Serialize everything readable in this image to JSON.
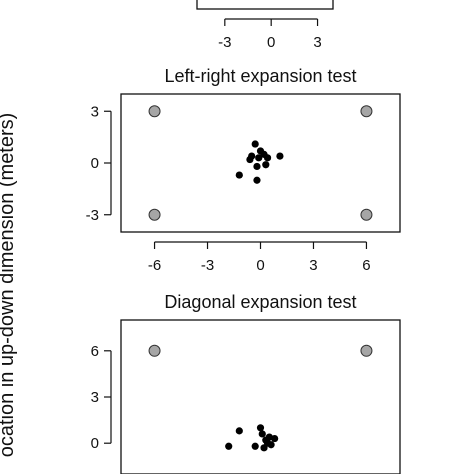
{
  "y_axis_label": "ocation in up-down dimension (meters)",
  "chart_data": [
    {
      "id": "top",
      "type": "scatter",
      "title": "",
      "x_ticks": [
        -3,
        0,
        3
      ],
      "xlim": [
        -4.8,
        4.0
      ],
      "series": []
    },
    {
      "id": "middle",
      "type": "scatter",
      "title": "Left-right expansion test",
      "x_ticks": [
        -6,
        -3,
        0,
        3,
        6
      ],
      "y_ticks": [
        3,
        0,
        -3
      ],
      "xlim": [
        -7.9,
        7.9
      ],
      "ylim": [
        -4.0,
        4.0
      ],
      "series": [
        {
          "kind": "grey-markers",
          "color": "#a6a6a6",
          "points": [
            [
              -6,
              3
            ],
            [
              6,
              3
            ],
            [
              -6,
              -3
            ],
            [
              6,
              -3
            ]
          ]
        },
        {
          "kind": "black-points",
          "color": "#000000",
          "points": [
            [
              -0.5,
              0.4
            ],
            [
              -0.3,
              1.1
            ],
            [
              0,
              0.7
            ],
            [
              -0.1,
              0.3
            ],
            [
              0.2,
              0.5
            ],
            [
              0.4,
              0.3
            ],
            [
              -0.6,
              0.2
            ],
            [
              0.3,
              -0.1
            ],
            [
              -0.2,
              -0.2
            ],
            [
              1.1,
              0.4
            ],
            [
              -1.2,
              -0.7
            ],
            [
              -0.2,
              -1.0
            ]
          ]
        }
      ]
    },
    {
      "id": "bottom",
      "type": "scatter",
      "title": "Diagonal expansion test",
      "y_ticks": [
        6,
        3,
        0
      ],
      "xlim": [
        -7.9,
        7.9
      ],
      "ylim": [
        -2.0,
        8.0
      ],
      "series": [
        {
          "kind": "grey-markers",
          "color": "#a6a6a6",
          "points": [
            [
              -6,
              6
            ],
            [
              6,
              6
            ]
          ]
        },
        {
          "kind": "black-points",
          "color": "#000000",
          "points": [
            [
              -1.2,
              0.8
            ],
            [
              0,
              1.0
            ],
            [
              0.1,
              0.6
            ],
            [
              0.3,
              0.2
            ],
            [
              0.5,
              0.4
            ],
            [
              0.8,
              0.3
            ],
            [
              -0.3,
              -0.2
            ],
            [
              0.2,
              -0.3
            ],
            [
              -1.8,
              -0.2
            ],
            [
              0.6,
              -0.1
            ],
            [
              0.4,
              0.0
            ]
          ]
        }
      ]
    }
  ]
}
